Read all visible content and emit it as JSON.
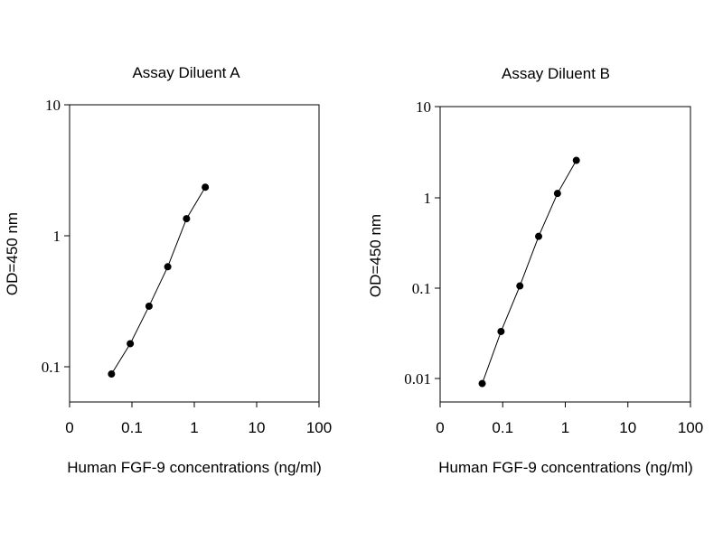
{
  "chart_data": [
    {
      "type": "line",
      "title": "Assay Diluent A",
      "xlabel": "Human FGF-9 concentrations (ng/ml)",
      "ylabel": "OD=450 nm",
      "xscale": "log",
      "yscale": "log",
      "xlim": [
        0.01,
        100
      ],
      "ylim": [
        0.05,
        10
      ],
      "xticks": [
        "0",
        "0.1",
        "1",
        "10",
        "100"
      ],
      "yticks": [
        "0.1",
        "1",
        "10"
      ],
      "series": [
        {
          "x": [
            0.047,
            0.094,
            0.188,
            0.375,
            0.75,
            1.5
          ],
          "y": [
            0.088,
            0.15,
            0.29,
            0.58,
            1.35,
            2.35
          ]
        }
      ]
    },
    {
      "type": "line",
      "title": "Assay Diluent B",
      "xlabel": "Human FGF-9 concentrations (ng/ml)",
      "ylabel": "OD=450 nm",
      "xscale": "log",
      "yscale": "log",
      "xlim": [
        0.01,
        100
      ],
      "ylim": [
        0.005,
        10
      ],
      "xticks": [
        "0",
        "0.1",
        "1",
        "10",
        "100"
      ],
      "yticks": [
        "0.01",
        "0.1",
        "1",
        "10"
      ],
      "series": [
        {
          "x": [
            0.047,
            0.094,
            0.188,
            0.375,
            0.75,
            1.5
          ],
          "y": [
            0.0088,
            0.033,
            0.105,
            0.37,
            1.1,
            2.55
          ]
        }
      ]
    }
  ]
}
